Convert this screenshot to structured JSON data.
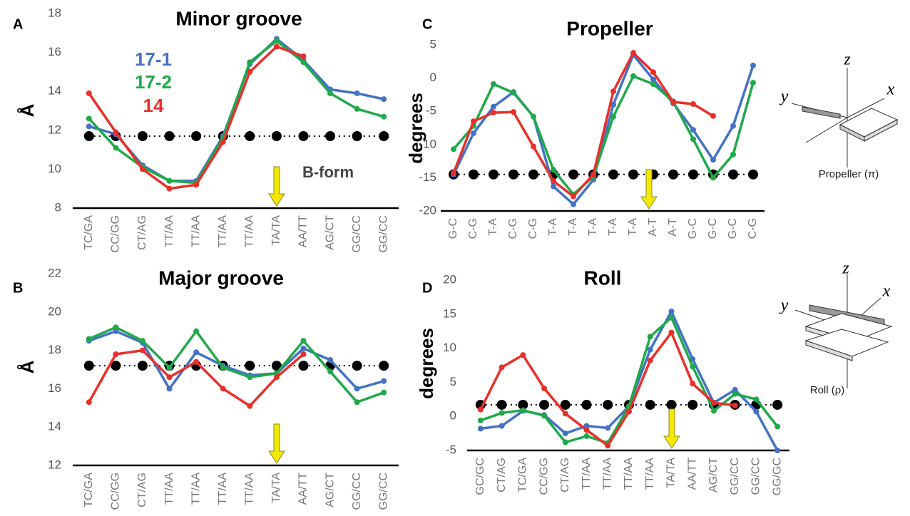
{
  "chart_data": [
    {
      "type": "line",
      "panel": "A",
      "title": "Minor groove",
      "y_label": "Å",
      "categories": [
        "TC/GA",
        "CC/GG",
        "CT/AG",
        "TT/AA",
        "TT/AA",
        "TT/AA",
        "TT/AA",
        "TA/TA",
        "AA/TT",
        "AG/CT",
        "GG/CC",
        "GG/CC"
      ],
      "ylim": [
        8,
        18
      ],
      "yticks": [
        8,
        10,
        12,
        14,
        16,
        18
      ],
      "legend": true,
      "series": [
        {
          "name": "17-1",
          "color": "#4472c4",
          "values": [
            12.2,
            11.8,
            10.2,
            9.4,
            9.4,
            11.7,
            15.4,
            16.7,
            15.6,
            14.1,
            13.9,
            13.6
          ]
        },
        {
          "name": "17-2",
          "color": "#1faa4a",
          "values": [
            12.6,
            11.1,
            10.1,
            9.4,
            9.3,
            11.6,
            15.5,
            16.6,
            15.5,
            13.9,
            13.1,
            12.7
          ]
        },
        {
          "name": "14",
          "color": "#e8302a",
          "values": [
            13.9,
            11.9,
            10.0,
            9.0,
            9.2,
            11.4,
            15.0,
            16.3,
            15.8,
            null,
            null,
            null
          ]
        },
        {
          "name": "B-form",
          "color": "#000000",
          "dotted": true,
          "values": [
            11.7,
            11.7,
            11.7,
            11.7,
            11.7,
            11.7,
            11.7,
            11.7,
            11.7,
            11.7,
            11.7,
            11.7
          ]
        }
      ]
    },
    {
      "type": "line",
      "panel": "B",
      "title": "Major groove",
      "y_label": "Å",
      "categories": [
        "TC/GA",
        "CC/GG",
        "CT/AG",
        "TT/AA",
        "TT/AA",
        "TT/AA",
        "TT/AA",
        "TA/TA",
        "AA/TT",
        "AG/CT",
        "GG/CC",
        "GG/CC"
      ],
      "ylim": [
        12,
        22
      ],
      "yticks": [
        12,
        14,
        16,
        18,
        20,
        22
      ],
      "series": [
        {
          "color": "#4472c4",
          "values": [
            18.5,
            19.0,
            18.4,
            16.0,
            17.9,
            17.2,
            16.7,
            16.8,
            18.1,
            17.5,
            16.0,
            16.4
          ]
        },
        {
          "color": "#1faa4a",
          "values": [
            18.6,
            19.2,
            18.5,
            17.1,
            19.0,
            17.1,
            16.6,
            16.8,
            18.5,
            16.9,
            15.3,
            15.8
          ]
        },
        {
          "color": "#e8302a",
          "values": [
            15.3,
            17.8,
            18.0,
            16.6,
            17.4,
            16.0,
            15.1,
            16.6,
            17.8,
            null,
            null,
            null
          ]
        },
        {
          "color": "#000000",
          "dotted": true,
          "values": [
            17.2,
            17.2,
            17.2,
            17.2,
            17.2,
            17.2,
            17.2,
            17.2,
            17.2,
            17.2,
            17.2,
            17.2
          ]
        }
      ]
    },
    {
      "type": "line",
      "panel": "C",
      "title": "Propeller",
      "y_label": "degrees",
      "categories": [
        "G-C",
        "C-G",
        "T-A",
        "C-G",
        "C-G",
        "T-A",
        "T-A",
        "T-A",
        "T-A",
        "T-A",
        "A-T",
        "A-T",
        "G-C",
        "G-C",
        "G-C",
        "C-G"
      ],
      "ylim": [
        -20,
        5
      ],
      "yticks": [
        -20,
        -15,
        -10,
        -5,
        0,
        5
      ],
      "diagram": {
        "z": "z",
        "y": "y",
        "x": "x",
        "label": "Propeller (π)"
      },
      "series": [
        {
          "color": "#4472c4",
          "values": [
            -14.5,
            -8.3,
            -4.3,
            -2.1,
            -5.8,
            -16.3,
            -19.0,
            -15.3,
            -4.0,
            3.5,
            -0.2,
            -3.8,
            -7.8,
            -12.3,
            -7.2,
            1.9
          ]
        },
        {
          "color": "#1faa4a",
          "values": [
            -10.7,
            -7.2,
            -0.9,
            -2.2,
            -5.8,
            -13.8,
            -17.5,
            -14.8,
            -5.8,
            0.3,
            -0.9,
            -3.5,
            -9.2,
            -15.0,
            -11.5,
            -0.7
          ]
        },
        {
          "color": "#e8302a",
          "values": [
            -14.3,
            -6.5,
            -5.2,
            -5.1,
            -10.3,
            -15.5,
            -17.8,
            -14.5,
            -2.0,
            3.8,
            0.9,
            -3.6,
            -3.9,
            -5.7,
            null,
            null
          ]
        },
        {
          "color": "#000000",
          "dotted": true,
          "values": [
            -14.5,
            -14.5,
            -14.5,
            -14.5,
            -14.5,
            -14.5,
            -14.5,
            -14.5,
            -14.5,
            -14.5,
            -14.5,
            -14.5,
            -14.5,
            -14.5,
            -14.5,
            -14.5
          ]
        }
      ]
    },
    {
      "type": "line",
      "panel": "D",
      "title": "Roll",
      "y_label": "degrees",
      "categories": [
        "GC/GC",
        "CT/AG",
        "TC/GA",
        "CC/GG",
        "CT/AG",
        "TT/AA",
        "TT/AA",
        "TT/AA",
        "TT/AA",
        "TA/TA",
        "AA/TT",
        "AG/CT",
        "GG/CC",
        "GG/CC",
        "GG/GC"
      ],
      "ylim": [
        -5,
        20
      ],
      "yticks": [
        -5,
        0,
        5,
        10,
        15,
        20
      ],
      "diagram": {
        "z": "z",
        "y": "y",
        "x": "x",
        "label": "Roll (ρ)"
      },
      "series": [
        {
          "color": "#4472c4",
          "values": [
            -1.8,
            -1.4,
            0.8,
            0.2,
            -2.5,
            -1.4,
            -1.7,
            1.5,
            9.8,
            15.4,
            8.4,
            2.0,
            3.9,
            0.7,
            -5.0
          ]
        },
        {
          "color": "#1faa4a",
          "values": [
            -0.6,
            0.5,
            0.9,
            0.1,
            -3.8,
            -2.9,
            -3.9,
            1.5,
            11.7,
            14.5,
            7.3,
            0.8,
            3.3,
            2.5,
            -1.5
          ]
        },
        {
          "color": "#e8302a",
          "values": [
            1.0,
            7.2,
            9.0,
            4.1,
            0.4,
            -2.0,
            -4.3,
            0.7,
            8.2,
            12.3,
            4.8,
            2.0,
            1.6,
            null,
            null
          ]
        },
        {
          "color": "#000000",
          "dotted": true,
          "values": [
            1.7,
            1.7,
            1.7,
            1.7,
            1.7,
            1.7,
            1.7,
            1.7,
            1.7,
            1.7,
            1.7,
            1.7,
            1.7,
            1.7,
            1.7
          ]
        }
      ]
    }
  ]
}
